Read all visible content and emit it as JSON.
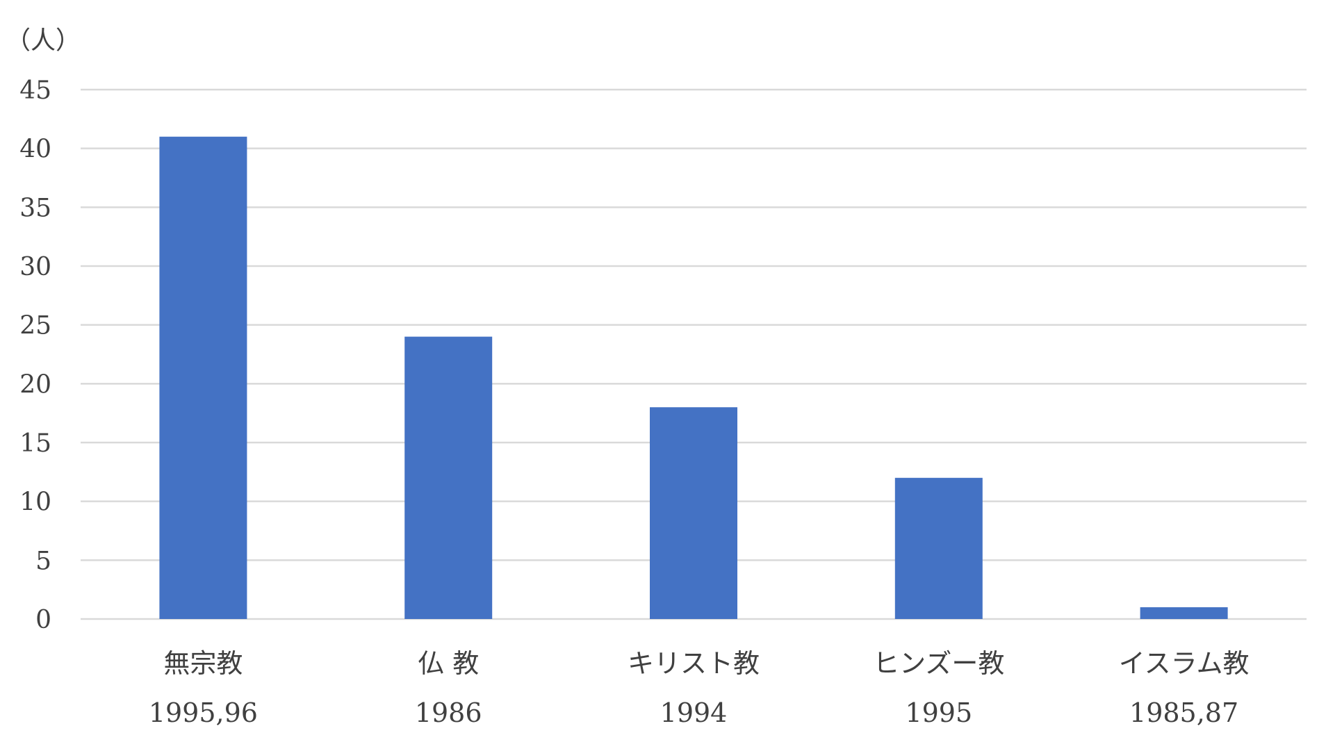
{
  "chart_data": {
    "type": "bar",
    "y_unit_label": "（人）",
    "categories": [
      {
        "name": "無宗教",
        "sub": "1995,96"
      },
      {
        "name": "仏 教",
        "sub": "1986"
      },
      {
        "name": "キリスト教",
        "sub": "1994"
      },
      {
        "name": "ヒンズー教",
        "sub": "1995"
      },
      {
        "name": "イスラム教",
        "sub": "1985,87"
      }
    ],
    "values": [
      41,
      24,
      18,
      12,
      1
    ],
    "ylim": [
      0,
      45
    ],
    "yticks": [
      0,
      5,
      10,
      15,
      20,
      25,
      30,
      35,
      40,
      45
    ],
    "grid": true,
    "legend": "none",
    "colors": {
      "bar": "#4472C4",
      "grid": "#D9D9D9",
      "text": "#404040"
    }
  }
}
